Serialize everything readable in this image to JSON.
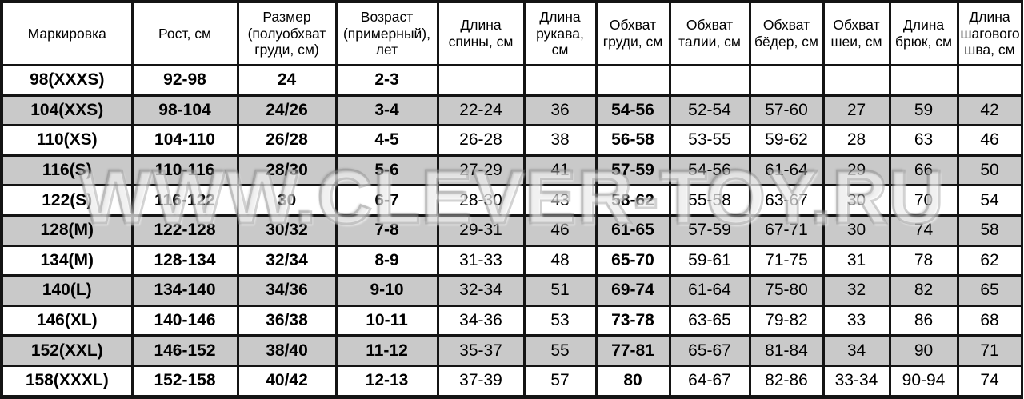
{
  "watermark": {
    "text": "WWW.CLEVER-TOY.RU"
  },
  "colors": {
    "row_shaded": "#c9c9c9",
    "row_plain": "#ffffff",
    "border": "#141414",
    "text": "#000000"
  },
  "chart_data": {
    "type": "table",
    "title": "Таблица размеров детской одежды",
    "columns": [
      "Маркировка",
      "Рост, см",
      "Размер (полуобхват груди, см)",
      "Возраст (примерный), лет",
      "Длина спины, см",
      "Длина рукава, см",
      "Обхват груди, см",
      "Обхват талии, см",
      "Обхват бёдер, см",
      "Обхват шеи, см",
      "Длина брюк, см",
      "Длина шагового шва, см"
    ],
    "rows": [
      [
        "98(XXXS)",
        "92-98",
        "24",
        "2-3",
        "",
        "",
        "",
        "",
        "",
        "",
        "",
        ""
      ],
      [
        "104(XXS)",
        "98-104",
        "24/26",
        "3-4",
        "22-24",
        "36",
        "54-56",
        "52-54",
        "57-60",
        "27",
        "59",
        "42"
      ],
      [
        "110(XS)",
        "104-110",
        "26/28",
        "4-5",
        "26-28",
        "38",
        "56-58",
        "53-55",
        "59-62",
        "28",
        "63",
        "46"
      ],
      [
        "116(S)",
        "110-116",
        "28/30",
        "5-6",
        "27-29",
        "41",
        "57-59",
        "54-56",
        "61-64",
        "29",
        "66",
        "50"
      ],
      [
        "122(S)",
        "116-122",
        "30",
        "6-7",
        "28-30",
        "43",
        "58-62",
        "55-58",
        "63-67",
        "30",
        "70",
        "54"
      ],
      [
        "128(M)",
        "122-128",
        "30/32",
        "7-8",
        "29-31",
        "46",
        "61-65",
        "57-59",
        "67-71",
        "30",
        "74",
        "58"
      ],
      [
        "134(M)",
        "128-134",
        "32/34",
        "8-9",
        "31-33",
        "48",
        "65-70",
        "59-61",
        "71-75",
        "31",
        "78",
        "62"
      ],
      [
        "140(L)",
        "134-140",
        "34/36",
        "9-10",
        "32-34",
        "51",
        "69-74",
        "61-64",
        "75-80",
        "32",
        "82",
        "65"
      ],
      [
        "146(XL)",
        "140-146",
        "36/38",
        "10-11",
        "34-36",
        "53",
        "73-78",
        "63-65",
        "79-82",
        "33",
        "86",
        "68"
      ],
      [
        "152(XXL)",
        "146-152",
        "38/40",
        "11-12",
        "35-37",
        "55",
        "77-81",
        "65-67",
        "81-84",
        "34",
        "90",
        "71"
      ],
      [
        "158(XXXL)",
        "152-158",
        "40/42",
        "12-13",
        "37-39",
        "57",
        "80",
        "64-67",
        "82-86",
        "33-34",
        "90-94",
        "74"
      ]
    ],
    "layout": {
      "shaded_row_indexes": [
        1,
        3,
        5,
        7,
        9
      ],
      "bold_column_indexes": [
        0,
        1,
        2,
        3,
        6
      ],
      "grid": "on"
    }
  }
}
